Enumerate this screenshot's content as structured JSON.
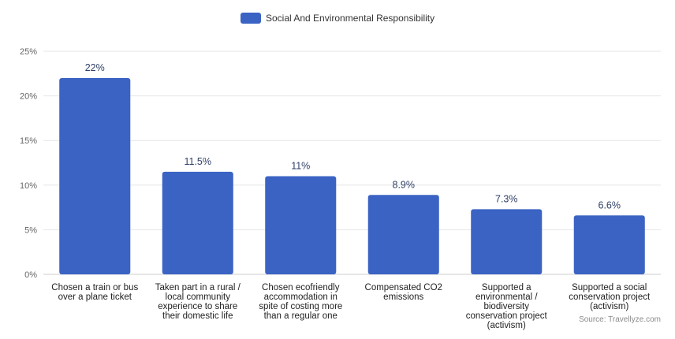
{
  "chart_data": {
    "type": "bar",
    "categories": [
      [
        "Chosen a train or bus",
        "over a plane ticket"
      ],
      [
        "Taken part in a rural /",
        "local community",
        "experience to share",
        "their domestic life"
      ],
      [
        "Chosen ecofriendly",
        "accommodation in",
        "spite of costing more",
        "than a regular one"
      ],
      [
        "Compensated CO2",
        "emissions"
      ],
      [
        "Supported a",
        "environmental /",
        "biodiversity",
        "conservation project",
        "(activism)"
      ],
      [
        "Supported a social",
        "conservation project",
        "(activism)"
      ]
    ],
    "series": [
      {
        "name": "Social And Environmental Responsibility",
        "values": [
          22,
          11.5,
          11,
          8.9,
          7.3,
          6.6
        ],
        "value_labels": [
          "22%",
          "11.5%",
          "11%",
          "8.9%",
          "7.3%",
          "6.6%"
        ],
        "color": "#3b63c4"
      }
    ],
    "ylim": [
      0,
      25
    ],
    "yticks": [
      0,
      5,
      10,
      15,
      20,
      25
    ],
    "ytick_labels": [
      "0%",
      "5%",
      "10%",
      "15%",
      "20%",
      "25%"
    ],
    "grid": true,
    "legend_position": "top-center",
    "source": "Source: Travellyze.com"
  }
}
